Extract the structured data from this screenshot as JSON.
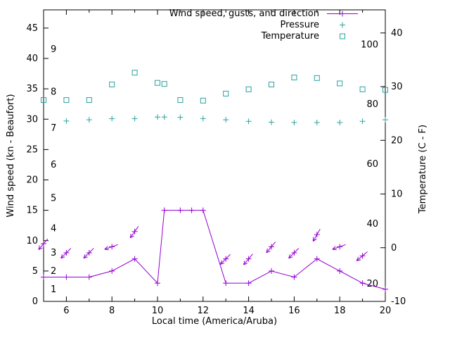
{
  "colors": {
    "wind": "#9400d3",
    "teal": "#2aa1a1",
    "axis": "#000000",
    "background": "#ffffff"
  },
  "legend": {
    "entries": [
      {
        "label": "Wind speed, gusts, and direction",
        "series": "wind"
      },
      {
        "label": "Pressure",
        "series": "pressure"
      },
      {
        "label": "Temperature",
        "series": "temperature"
      }
    ]
  },
  "chart_data": {
    "type": "line",
    "title": "",
    "xlabel": "Local time (America/Aruba)",
    "ylabel_left": "Wind speed (kn - Beaufort)",
    "ylabel_right": "Temperature (C - F)",
    "x_range": [
      5,
      20
    ],
    "y_left_range": [
      0,
      48
    ],
    "y_right_range": [
      -10,
      44.3
    ],
    "x_ticks": [
      6,
      8,
      10,
      12,
      14,
      16,
      18,
      20
    ],
    "x_minor_ticks": [
      5,
      7,
      9,
      11,
      13,
      15,
      17,
      19
    ],
    "y_left_ticks": [
      0,
      5,
      10,
      15,
      20,
      25,
      30,
      35,
      40,
      45
    ],
    "y_right_ticks": [
      -10,
      0,
      10,
      20,
      30,
      40
    ],
    "beaufort_labels": [
      [
        1,
        2
      ],
      [
        2,
        5
      ],
      [
        3,
        8
      ],
      [
        4,
        12
      ],
      [
        5,
        17
      ],
      [
        6,
        22.5
      ],
      [
        7,
        28.5
      ],
      [
        8,
        34.5
      ],
      [
        9,
        41.5
      ]
    ],
    "fahrenheit_labels": [
      [
        20,
        -6.7
      ],
      [
        40,
        4.4
      ],
      [
        60,
        15.6
      ],
      [
        80,
        26.7
      ],
      [
        100,
        37.8
      ]
    ],
    "grid": false,
    "legend_position": "top-right-inside",
    "series": [
      {
        "name": "Wind speed, gusts, and direction",
        "axis": "left",
        "type": "line+cross",
        "color": "#9400d3",
        "points": [
          [
            5,
            4
          ],
          [
            6,
            4
          ],
          [
            7,
            4
          ],
          [
            8,
            5
          ],
          [
            9,
            7
          ],
          [
            10,
            3
          ],
          [
            10.3,
            15
          ],
          [
            11,
            15
          ],
          [
            11.5,
            15
          ],
          [
            12,
            15
          ],
          [
            13,
            3
          ],
          [
            14,
            3
          ],
          [
            15,
            5
          ],
          [
            16,
            4
          ],
          [
            17,
            7
          ],
          [
            18,
            5
          ],
          [
            19,
            3
          ],
          [
            20,
            2
          ]
        ]
      },
      {
        "name": "Wind gusts and direction",
        "axis": "left",
        "type": "vector",
        "color": "#9400d3",
        "points": [
          [
            5,
            9.5,
            230
          ],
          [
            6,
            8,
            225
          ],
          [
            7,
            8,
            225
          ],
          [
            8,
            9,
            200
          ],
          [
            9,
            11.5,
            235
          ],
          [
            13,
            7,
            225
          ],
          [
            14,
            7,
            230
          ],
          [
            15,
            9,
            230
          ],
          [
            16,
            8,
            225
          ],
          [
            17,
            11,
            240
          ],
          [
            18,
            9,
            200
          ],
          [
            19,
            7.5,
            220
          ]
        ]
      },
      {
        "name": "Pressure",
        "axis": "left",
        "type": "plus",
        "color": "#2aa1a1",
        "points": [
          [
            6,
            29.7
          ],
          [
            7,
            29.9
          ],
          [
            8,
            30.1
          ],
          [
            9,
            30.1
          ],
          [
            10,
            30.35
          ],
          [
            10.3,
            30.35
          ],
          [
            11,
            30.3
          ],
          [
            12,
            30.1
          ],
          [
            13,
            29.9
          ],
          [
            14,
            29.65
          ],
          [
            15,
            29.5
          ],
          [
            16,
            29.45
          ],
          [
            17,
            29.45
          ],
          [
            18,
            29.45
          ],
          [
            19,
            29.65
          ],
          [
            20,
            29.9
          ]
        ]
      },
      {
        "name": "Temperature",
        "axis": "right",
        "type": "square",
        "color": "#2aa1a1",
        "points": [
          [
            5,
            27.5
          ],
          [
            6,
            27.5
          ],
          [
            7,
            27.5
          ],
          [
            8,
            30.4
          ],
          [
            9,
            32.6
          ],
          [
            10,
            30.7
          ],
          [
            10.3,
            30.5
          ],
          [
            11,
            27.5
          ],
          [
            12,
            27.4
          ],
          [
            13,
            28.7
          ],
          [
            14,
            29.5
          ],
          [
            15,
            30.4
          ],
          [
            16,
            31.7
          ],
          [
            17,
            31.6
          ],
          [
            18,
            30.6
          ],
          [
            19,
            29.5
          ],
          [
            20,
            29.4
          ]
        ]
      }
    ]
  }
}
